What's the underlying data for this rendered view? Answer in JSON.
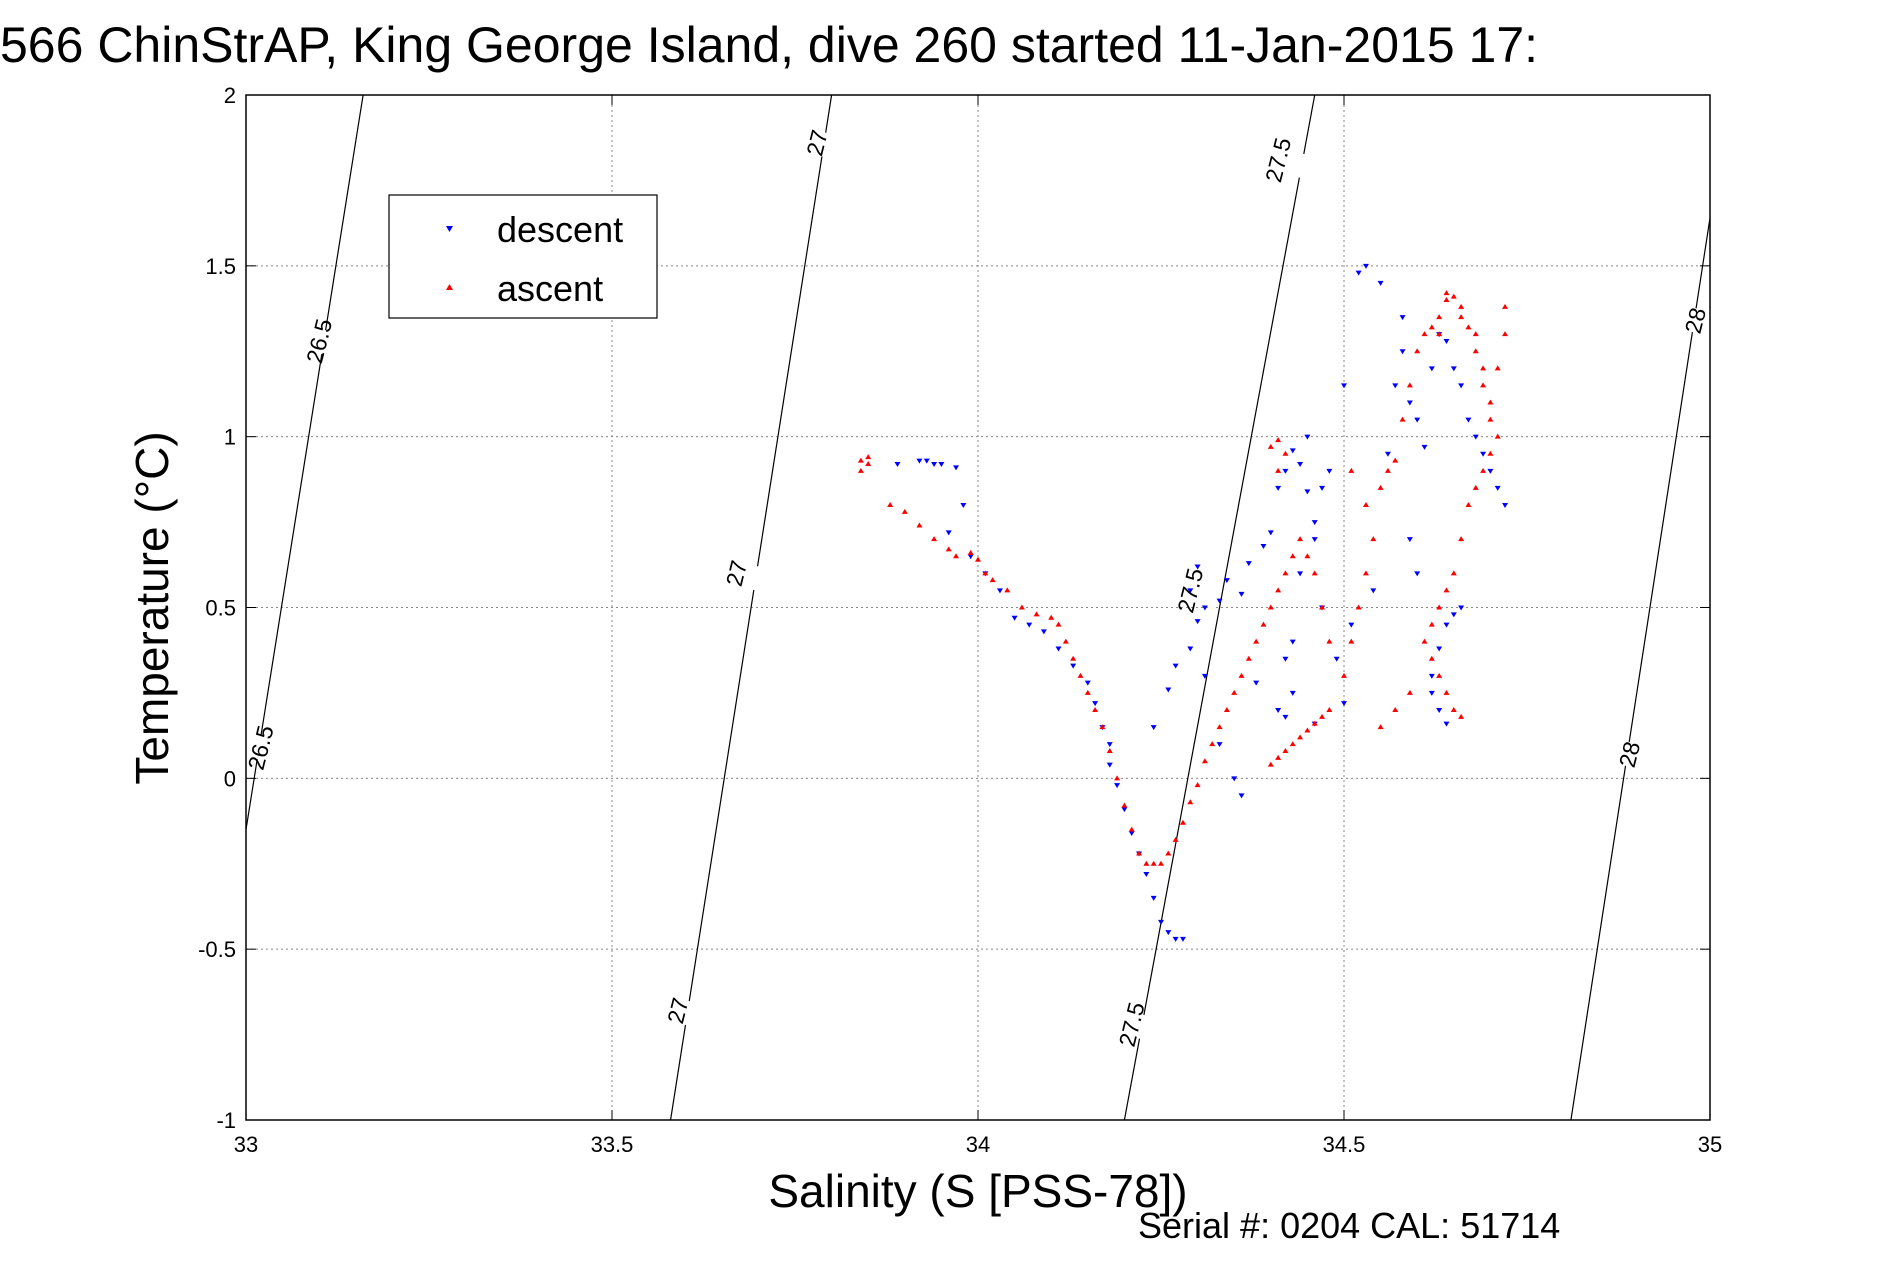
{
  "chart_data": {
    "type": "scatter",
    "title": "566 ChinStrAP, King George Island, dive 260 started 11-Jan-2015 17:",
    "xlabel": "Salinity (S [PSS-78])",
    "ylabel": "Temperature (°C)",
    "xlim": [
      33,
      35
    ],
    "ylim": [
      -1,
      2
    ],
    "x_ticks": [
      "33",
      "33.5",
      "34",
      "34.5",
      "35"
    ],
    "y_ticks": [
      "-1",
      "-0.5",
      "0",
      "0.5",
      "1",
      "1.5",
      "2"
    ],
    "grid": true,
    "legend": {
      "position": "top-left",
      "entries": [
        "descent",
        "ascent"
      ]
    },
    "colors": {
      "descent": "#0000ff",
      "ascent": "#ff0000"
    },
    "density_contours": [
      {
        "label": "26.5",
        "points": [
          [
            33,
            -0.15
          ],
          [
            33.16,
            2.0
          ]
        ]
      },
      {
        "label": "27",
        "points": [
          [
            33.58,
            -1.0
          ],
          [
            33.8,
            2.0
          ]
        ]
      },
      {
        "label": "27.5",
        "points": [
          [
            34.2,
            -1.0
          ],
          [
            34.46,
            2.0
          ]
        ]
      },
      {
        "label": "28",
        "points": [
          [
            34.81,
            -1.0
          ],
          [
            35,
            1.64
          ]
        ]
      }
    ],
    "contour_labels": [
      {
        "text": "26.5",
        "x": 33.1,
        "y": 1.28
      },
      {
        "text": "26.5",
        "x": 33.02,
        "y": 0.09
      },
      {
        "text": "27",
        "x": 33.78,
        "y": 1.86
      },
      {
        "text": "27",
        "x": 33.67,
        "y": 0.6
      },
      {
        "text": "27",
        "x": 33.59,
        "y": -0.68
      },
      {
        "text": "27.5",
        "x": 34.41,
        "y": 1.81
      },
      {
        "text": "27.5",
        "x": 34.29,
        "y": 0.55
      },
      {
        "text": "27.5",
        "x": 34.21,
        "y": -0.72
      },
      {
        "text": "28",
        "x": 34.98,
        "y": 1.34
      },
      {
        "text": "28",
        "x": 34.89,
        "y": 0.07
      }
    ],
    "series": [
      {
        "name": "descent",
        "marker": "triangle-down",
        "x": [
          33.89,
          33.92,
          33.93,
          33.94,
          33.95,
          33.97,
          33.98,
          33.96,
          33.99,
          34.01,
          34.03,
          34.05,
          34.07,
          34.09,
          34.11,
          34.13,
          34.15,
          34.16,
          34.17,
          34.18,
          34.18,
          34.19,
          34.2,
          34.21,
          34.22,
          34.23,
          34.24,
          34.25,
          34.26,
          34.27,
          34.28,
          34.24,
          34.26,
          34.27,
          34.29,
          34.3,
          34.31,
          34.33,
          34.34,
          34.36,
          34.37,
          34.39,
          34.4,
          34.41,
          34.42,
          34.43,
          34.44,
          34.45,
          34.46,
          34.47,
          34.38,
          34.41,
          34.42,
          34.43,
          34.46,
          34.5,
          34.49,
          34.51,
          34.54,
          34.56,
          34.57,
          34.58,
          34.58,
          34.59,
          34.6,
          34.61,
          34.62,
          34.63,
          34.64,
          34.65,
          34.66,
          34.67,
          34.68,
          34.69,
          34.7,
          34.71,
          34.72,
          34.64,
          34.63,
          34.62,
          34.65,
          34.66,
          34.63,
          34.64,
          34.62,
          34.6,
          34.59,
          34.55,
          34.53,
          34.52,
          34.5,
          34.48,
          34.47,
          34.46,
          34.45,
          34.44,
          34.43,
          34.42,
          34.36,
          34.35,
          34.33,
          34.31,
          34.3,
          34.29
        ],
        "y": [
          0.92,
          0.93,
          0.93,
          0.92,
          0.92,
          0.91,
          0.8,
          0.72,
          0.65,
          0.6,
          0.55,
          0.47,
          0.45,
          0.43,
          0.38,
          0.33,
          0.28,
          0.22,
          0.15,
          0.1,
          0.04,
          -0.02,
          -0.09,
          -0.16,
          -0.22,
          -0.28,
          -0.35,
          -0.42,
          -0.45,
          -0.47,
          -0.47,
          0.15,
          0.26,
          0.33,
          0.38,
          0.46,
          0.5,
          0.52,
          0.58,
          0.54,
          0.63,
          0.68,
          0.72,
          0.85,
          0.9,
          0.96,
          0.92,
          0.84,
          0.75,
          0.5,
          0.28,
          0.2,
          0.18,
          0.25,
          0.16,
          0.22,
          0.35,
          0.45,
          0.55,
          0.95,
          1.15,
          1.25,
          1.35,
          1.1,
          1.05,
          0.97,
          1.2,
          1.3,
          1.28,
          1.2,
          1.15,
          1.05,
          1.0,
          0.95,
          0.9,
          0.85,
          0.8,
          0.45,
          0.38,
          0.3,
          0.48,
          0.5,
          0.2,
          0.16,
          0.25,
          0.6,
          0.7,
          1.45,
          1.5,
          1.48,
          1.15,
          0.9,
          0.85,
          0.7,
          1.0,
          0.6,
          0.4,
          0.35,
          -0.05,
          0.0,
          0.1,
          0.3,
          0.62,
          0.55
        ]
      },
      {
        "name": "ascent",
        "marker": "triangle-up",
        "x": [
          33.84,
          33.85,
          33.85,
          33.84,
          33.88,
          33.9,
          33.92,
          33.94,
          33.96,
          33.97,
          33.99,
          34.0,
          34.01,
          34.02,
          34.04,
          34.06,
          34.08,
          34.1,
          34.11,
          34.12,
          34.13,
          34.14,
          34.15,
          34.16,
          34.17,
          34.18,
          34.19,
          34.2,
          34.21,
          34.22,
          34.23,
          34.24,
          34.25,
          34.26,
          34.27,
          34.28,
          34.29,
          34.3,
          34.31,
          34.32,
          34.33,
          34.34,
          34.35,
          34.36,
          34.37,
          34.38,
          34.39,
          34.4,
          34.41,
          34.42,
          34.43,
          34.44,
          34.45,
          34.46,
          34.47,
          34.48,
          34.4,
          34.41,
          34.42,
          34.43,
          34.44,
          34.45,
          34.46,
          34.47,
          34.48,
          34.5,
          34.51,
          34.52,
          34.53,
          34.54,
          34.55,
          34.56,
          34.57,
          34.58,
          34.59,
          34.6,
          34.61,
          34.62,
          34.63,
          34.63,
          34.64,
          34.64,
          34.65,
          34.66,
          34.66,
          34.67,
          34.68,
          34.68,
          34.69,
          34.69,
          34.7,
          34.7,
          34.71,
          34.71,
          34.72,
          34.72,
          34.7,
          34.69,
          34.68,
          34.67,
          34.66,
          34.65,
          34.64,
          34.63,
          34.62,
          34.62,
          34.63,
          34.64,
          34.65,
          34.66,
          34.61,
          34.59,
          34.57,
          34.55,
          34.53,
          34.51,
          34.4,
          34.41,
          34.42,
          34.41
        ],
        "y": [
          0.93,
          0.94,
          0.92,
          0.9,
          0.8,
          0.78,
          0.74,
          0.7,
          0.67,
          0.65,
          0.66,
          0.64,
          0.6,
          0.58,
          0.55,
          0.5,
          0.48,
          0.47,
          0.45,
          0.4,
          0.35,
          0.3,
          0.25,
          0.2,
          0.15,
          0.08,
          0.0,
          -0.08,
          -0.15,
          -0.22,
          -0.25,
          -0.25,
          -0.25,
          -0.22,
          -0.18,
          -0.13,
          -0.07,
          -0.02,
          0.05,
          0.1,
          0.15,
          0.2,
          0.25,
          0.3,
          0.35,
          0.4,
          0.45,
          0.5,
          0.55,
          0.6,
          0.65,
          0.7,
          0.65,
          0.6,
          0.5,
          0.4,
          0.04,
          0.06,
          0.08,
          0.1,
          0.12,
          0.14,
          0.16,
          0.18,
          0.2,
          0.3,
          0.4,
          0.5,
          0.6,
          0.7,
          0.85,
          0.9,
          0.93,
          1.05,
          1.15,
          1.25,
          1.3,
          1.32,
          1.3,
          1.35,
          1.4,
          1.42,
          1.41,
          1.38,
          1.35,
          1.32,
          1.3,
          1.25,
          1.2,
          1.15,
          1.1,
          1.05,
          1.0,
          1.2,
          1.3,
          1.38,
          0.95,
          0.9,
          0.85,
          0.8,
          0.7,
          0.6,
          0.55,
          0.5,
          0.45,
          0.35,
          0.3,
          0.25,
          0.2,
          0.18,
          0.4,
          0.25,
          0.2,
          0.15,
          0.8,
          0.9,
          0.97,
          0.99,
          0.95,
          0.9
        ]
      }
    ]
  },
  "footer": {
    "serial": "Serial #: 0204  CAL: 51714"
  }
}
